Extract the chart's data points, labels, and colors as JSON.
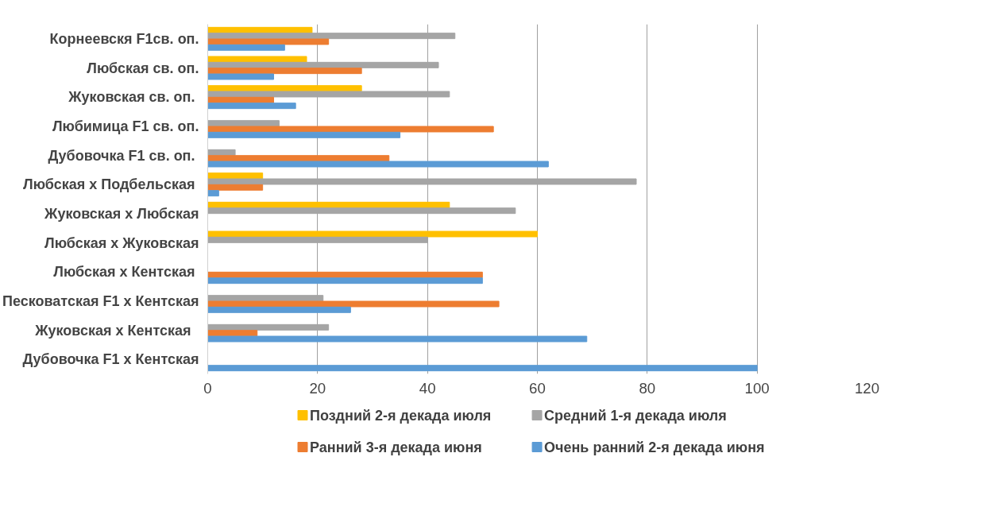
{
  "chart_data": {
    "type": "bar",
    "orientation": "horizontal",
    "categories": [
      "Корнеевскя F1св. оп.",
      "Любская св. оп.",
      "Жуковская  св. оп.",
      "Любимица F1 св. оп.",
      "Дубовочка F1  св. оп.",
      "Любская  х Подбельская",
      "Жуковская х Любская",
      "Любская х Жуковская",
      "Любская  х Кентская",
      "Песковатская F1 х Кентская",
      "Жуковская  х  Кентская",
      "Дубовочка F1 х Кентская"
    ],
    "series": [
      {
        "name": "Поздний 2-я декада июля",
        "color": "#ffc000",
        "values": [
          19,
          18,
          28,
          null,
          null,
          10,
          44,
          60,
          null,
          null,
          null,
          null
        ]
      },
      {
        "name": "Средний 1-я декада июля",
        "color": "#a5a5a5",
        "values": [
          45,
          42,
          44,
          13,
          5,
          78,
          56,
          40,
          null,
          21,
          22,
          null
        ]
      },
      {
        "name": "Ранний 3-я декада июня",
        "color": "#ed7d31",
        "values": [
          22,
          28,
          12,
          52,
          33,
          10,
          null,
          null,
          50,
          53,
          9,
          null
        ]
      },
      {
        "name": "Очень ранний 2-я декада июня",
        "color": "#5b9bd5",
        "values": [
          14,
          12,
          16,
          35,
          62,
          2,
          null,
          null,
          50,
          26,
          69,
          100
        ]
      }
    ],
    "xlim": [
      0,
      120
    ],
    "xticks": [
      0,
      20,
      40,
      60,
      80,
      100,
      120
    ],
    "grid": "x",
    "legend": "bottom"
  }
}
